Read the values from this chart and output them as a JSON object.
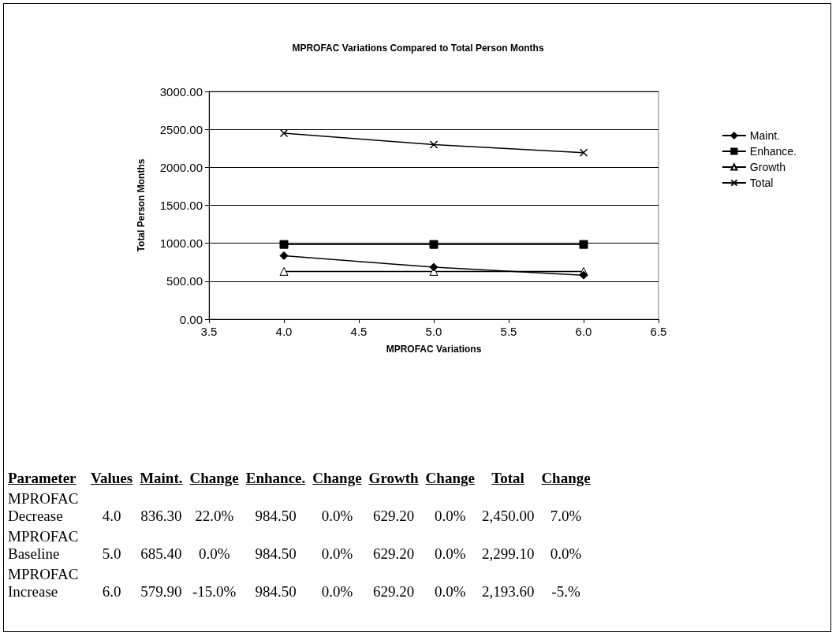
{
  "chart_data": {
    "type": "line",
    "title": "MPROFAC Variations Compared to Total Person Months",
    "xlabel": "MPROFAC Variations",
    "ylabel": "Total Person Months",
    "x": [
      4,
      5,
      6
    ],
    "series": [
      {
        "name": "Maint.",
        "color": "#000000",
        "marker": "diamond",
        "values": [
          836.3,
          685.4,
          579.9
        ]
      },
      {
        "name": "Enhance.",
        "color": "#000000",
        "marker": "square",
        "values": [
          984.5,
          984.5,
          984.5
        ]
      },
      {
        "name": "Growth",
        "color": "#000000",
        "marker": "triangle",
        "values": [
          629.2,
          629.2,
          629.2
        ]
      },
      {
        "name": "Total",
        "color": "#000000",
        "marker": "cross",
        "values": [
          2450,
          2299.1,
          2193.6
        ]
      }
    ],
    "xlim": [
      3.5,
      6.5
    ],
    "xticks": [
      3.5,
      {
        "value": 4,
        "label": "4.0"
      },
      4.5,
      {
        "value": 5,
        "label": "5.0"
      },
      5.5,
      {
        "value": 6,
        "label": "6.0"
      },
      6.5
    ],
    "ylim": [
      0,
      3000
    ],
    "yticks": [
      {
        "value": 0,
        "label": "0.00"
      },
      {
        "value": 500,
        "label": "500.00"
      },
      {
        "value": 1000,
        "label": "1000.00"
      },
      {
        "value": 1500,
        "label": "1500.00"
      },
      {
        "value": 2000,
        "label": "2000.00"
      },
      {
        "value": 2500,
        "label": "2500.00"
      },
      {
        "value": 3000,
        "label": "3000.00"
      }
    ],
    "grid": "y",
    "legend": "right",
    "line_style": "solid",
    "annotations": [
      "Parameter",
      "Values",
      "Maint.",
      "Change",
      "Enhance.",
      "Change",
      "Growth",
      "Change",
      "Total",
      "Change",
      "MPROFAC Decrease",
      "4.0",
      "836.30",
      "22.0%",
      "984.50",
      "0.0%",
      "629.20",
      "0.0%",
      "2,450.00",
      "7.0%",
      "MPROFAC Baseline",
      "5.0",
      "685.40",
      "0.0%",
      "984.50",
      "0.0%",
      "629.20",
      "0.0%",
      "2,299.10",
      "0.0%",
      "MPROFAC Increase",
      "6.0",
      "579.90",
      "-15.0%",
      "984.50",
      "0.0%",
      "629.20",
      "0.0%",
      "2,193.60",
      "-5.%"
    ]
  }
}
